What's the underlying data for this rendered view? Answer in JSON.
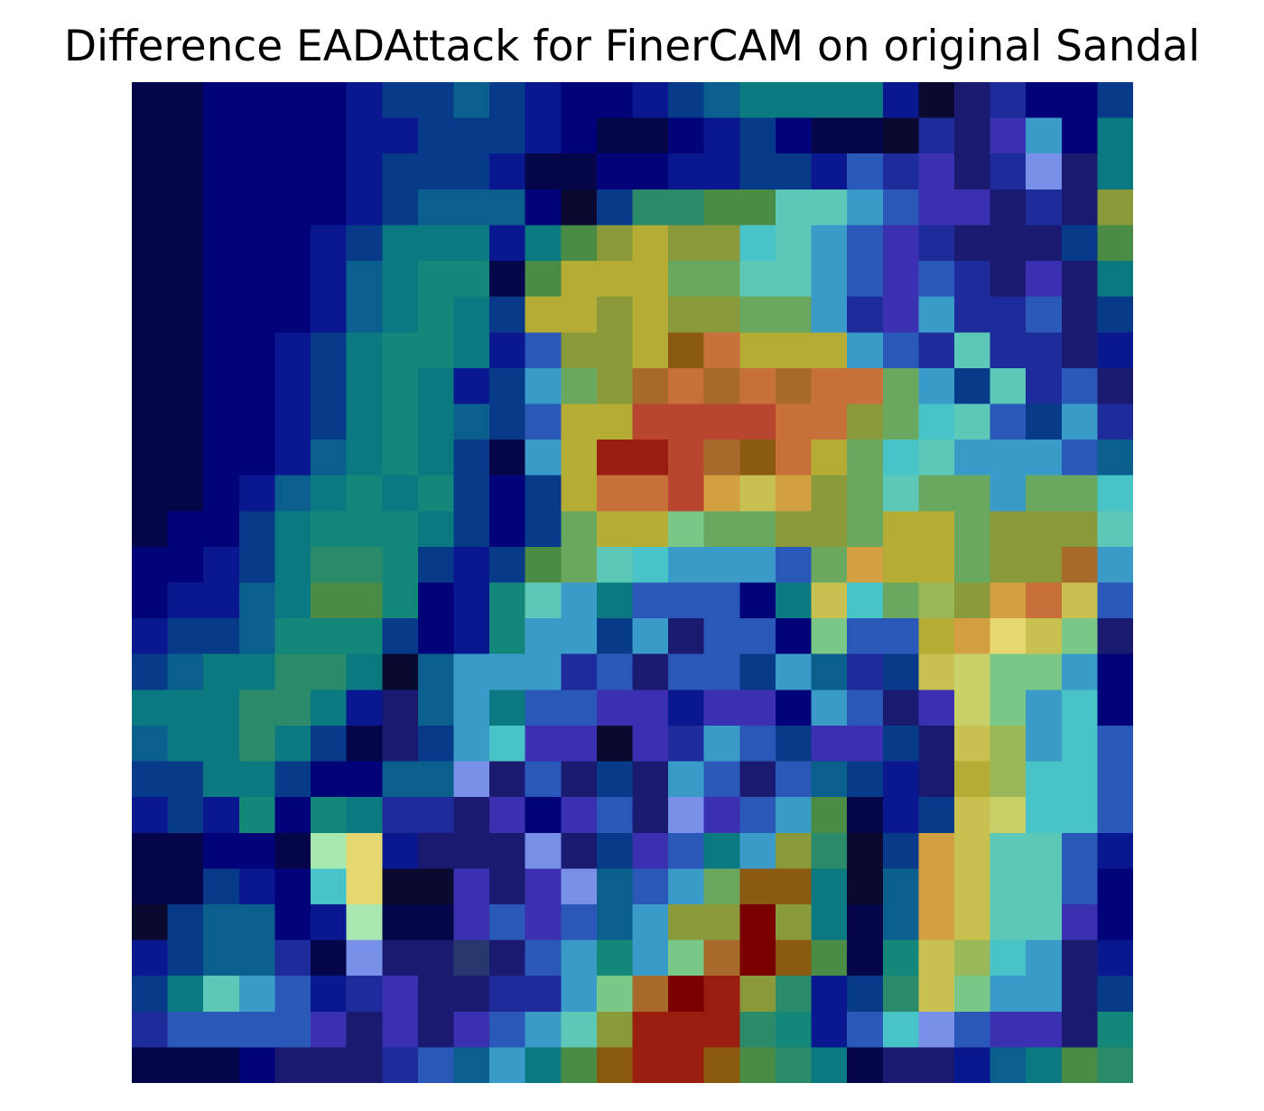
{
  "title": "Difference EADAttack for FinerCAM on original Sandal",
  "image": {
    "description_kind": "attribution-difference-heatmap",
    "colormap": "jet-like blended overlay",
    "grid": {
      "rows": 28,
      "cols": 28
    },
    "palette": {
      "a": "#05054a",
      "b": "#020279",
      "c": "#0a1890",
      "d": "#073b8a",
      "e": "#0a5f8c",
      "f": "#0b7a80",
      "g": "#13887a",
      "h": "#2a8a6a",
      "i": "#4a8c45",
      "j": "#8a9a3a",
      "k": "#b4ac35",
      "l": "#c8c050",
      "m": "#d2a040",
      "n": "#c8703a",
      "o": "#b8452e",
      "p": "#9a1e10",
      "q": "#7a0000",
      "r": "#5ec8b8",
      "s": "#48c4c8",
      "t": "#3a9ac8",
      "u": "#2a58b8",
      "v": "#3a30b0",
      "w": "#1a1a70",
      "x": "#7890e8",
      "y": "#a8e8b0",
      "z": "#e6d870",
      "A": "#6aa860",
      "B": "#7ac888",
      "C": "#1d2c9a",
      "D": "#28386e",
      "E": "#c8d068",
      "F": "#9ab858",
      "G": "#8a5a10",
      "H": "#a86a2a",
      "I": "#2a6a3a",
      "J": "#15306a",
      "K": "#0a0a30"
    },
    "rows": [
      "aabbbbcddedcbbcdeffffcKwCbbd",
      "aabbbbccdddcbaabcdbaaKCwvtbf",
      "aabbbbcdddcaabbccddcuCvwCxwf",
      "aabbbbcdeeebKdhhiirrtuvvwCwj",
      "aabbbcdfffcfijkjjsrtuvCwwwdi",
      "aabbbcefggaikkkAArrtuvuCwvwf",
      "aabbbcefgfdkkjkjjAAtCvtCCuwd",
      "aabbcdfggfcujjkGnkkktuCrCCwc",
      "aabbcdfgfcdtAjHnHnHnnAtdrCuw",
      "aabbcdfgfedukkoooonnjAsrudtC",
      "aabbcefgfdatkppoHGnkAsrtttue",
      "aabcefgfgdbdknnomlmjArAAtAAs",
      "abbdfgggfdbdAkkBAAjjAkkAjjjr",
      "bbcdfhhgdcdiArstttuAmkkAjjHt",
      "bccefiigbcgrtfuuubflsAFjmnlu",
      "cddegggdbcgttdtwuubBuukmzlBw",
      "deffhhfKetttCuwuudteCdlEBBtb",
      "fffhhfcwetfuuvvcvvbtuwvEBtsb",
      "effhfdawdtsvvKvCtudvvdwlFtsu",
      "ddffdbbeexwuwdwtuwuedcwkFssu",
      "cdcgbgfCCwvbvuwxvutiacdlEssu",
      "aabbayzcwwwxwdvuftjhKdmlrruc",
      "aadcbszKKvwvxeutAGGfKemlrrub",
      "Kdeebcyaavuvuetjjqjfaemlrrvb",
      "cdeeCaxwwDwutgtBHqGiaglFstwc",
      "dfrtucCvwwCCtBHqpjhcdhlBttwd",
      "Cuuuuvwvwvutrjppphgcusxuvvwg",
      "aaabwwwCuetfiGppGihfawwcefih"
    ]
  }
}
